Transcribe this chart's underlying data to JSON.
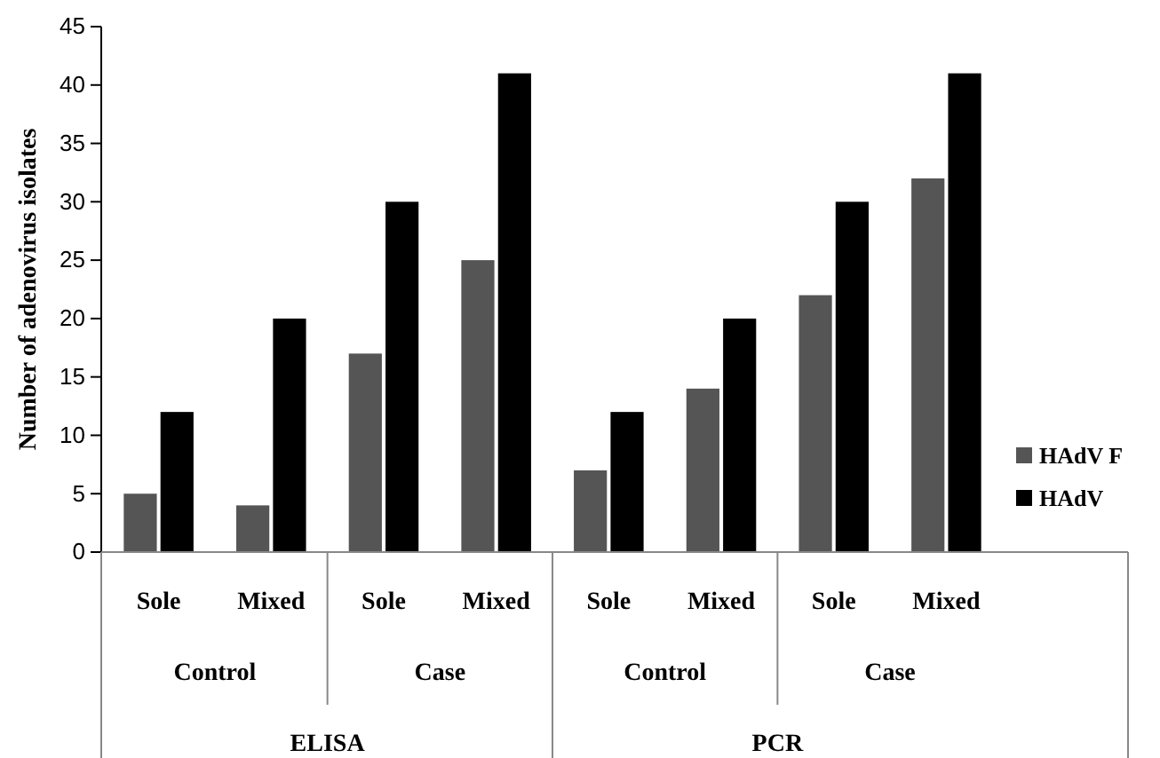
{
  "chart_data": {
    "type": "bar",
    "ylabel": "Number of adenovirus isolates",
    "categories": [
      "Sole",
      "Mixed",
      "Sole",
      "Mixed",
      "Sole",
      "Mixed",
      "Sole",
      "Mixed"
    ],
    "series": [
      {
        "name": "HAdV F",
        "color": "#555555",
        "values": [
          5,
          4,
          17,
          25,
          7,
          14,
          22,
          32
        ]
      },
      {
        "name": "HAdV",
        "color": "#000000",
        "values": [
          12,
          20,
          30,
          41,
          12,
          20,
          30,
          41
        ]
      }
    ],
    "annotations": [
      "Control",
      "Case",
      "Control",
      "Case",
      "ELISA",
      "PCR"
    ],
    "ylim": [
      0,
      45
    ],
    "yticks": [
      0,
      5,
      10,
      15,
      20,
      25,
      30,
      35,
      40,
      45
    ],
    "grid": false,
    "legend": "right"
  }
}
